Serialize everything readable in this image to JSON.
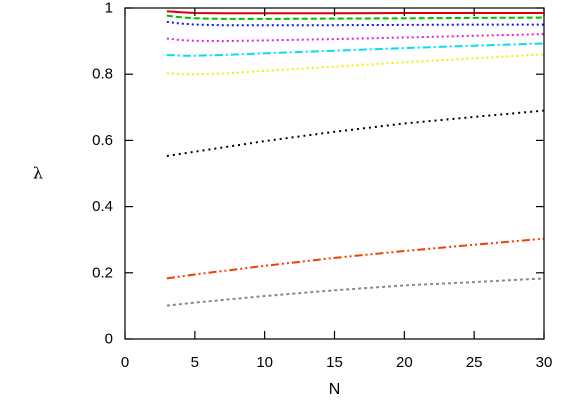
{
  "chart_data": {
    "type": "line",
    "title": "",
    "xlabel": "N",
    "ylabel": "λ",
    "xlim": [
      0,
      30
    ],
    "ylim": [
      0,
      1
    ],
    "x_ticks": [
      0,
      5,
      10,
      15,
      20,
      25,
      30
    ],
    "y_ticks": [
      0,
      0.2,
      0.4,
      0.6,
      0.8,
      1
    ],
    "x_tick_labels": [
      "0",
      "5",
      "10",
      "15",
      "20",
      "25",
      "30"
    ],
    "y_tick_labels": [
      "0",
      "0.2",
      "0.4",
      "0.6",
      "0.8",
      "1"
    ],
    "grid": false,
    "legend": "none",
    "series": [
      {
        "color": "#e00000",
        "dash": "solid",
        "x": [
          3,
          4,
          5,
          7,
          10,
          15,
          20,
          25,
          30
        ],
        "y": [
          0.99,
          0.987,
          0.985,
          0.984,
          0.984,
          0.984,
          0.985,
          0.985,
          0.985
        ]
      },
      {
        "color": "#00c000",
        "dash": "6,3",
        "x": [
          3,
          4,
          5,
          7,
          10,
          15,
          20,
          25,
          30
        ],
        "y": [
          0.977,
          0.972,
          0.969,
          0.967,
          0.967,
          0.968,
          0.969,
          0.97,
          0.971
        ]
      },
      {
        "color": "#1010ff",
        "dash": "2,3",
        "x": [
          3,
          4,
          5,
          7,
          10,
          15,
          20,
          25,
          30
        ],
        "y": [
          0.958,
          0.953,
          0.95,
          0.948,
          0.948,
          0.948,
          0.949,
          0.95,
          0.95
        ]
      },
      {
        "color": "#e020e0",
        "dash": "2,3",
        "x": [
          3,
          4,
          5,
          7,
          10,
          15,
          20,
          25,
          30
        ],
        "y": [
          0.908,
          0.903,
          0.901,
          0.9,
          0.902,
          0.906,
          0.911,
          0.916,
          0.921
        ]
      },
      {
        "color": "#00e0f0",
        "dash": "8,3,2,3",
        "x": [
          3,
          4,
          5,
          7,
          10,
          15,
          20,
          25,
          30
        ],
        "y": [
          0.858,
          0.856,
          0.856,
          0.858,
          0.863,
          0.871,
          0.879,
          0.886,
          0.893
        ]
      },
      {
        "color": "#f0f000",
        "dash": "2,3",
        "x": [
          3,
          4,
          5,
          7,
          10,
          15,
          20,
          25,
          30
        ],
        "y": [
          0.803,
          0.8,
          0.8,
          0.802,
          0.81,
          0.823,
          0.836,
          0.848,
          0.86
        ]
      },
      {
        "color": "#000000",
        "dash": "2,4",
        "x": [
          3,
          5,
          10,
          15,
          20,
          25,
          30
        ],
        "y": [
          0.553,
          0.566,
          0.598,
          0.626,
          0.651,
          0.671,
          0.69
        ]
      },
      {
        "color": "#f04000",
        "dash": "8,3,2,3,2,3",
        "x": [
          3,
          5,
          10,
          15,
          20,
          25,
          30
        ],
        "y": [
          0.183,
          0.195,
          0.221,
          0.245,
          0.266,
          0.285,
          0.303
        ]
      },
      {
        "color": "#888888",
        "dash": "3,3",
        "x": [
          3,
          5,
          10,
          15,
          20,
          25,
          30
        ],
        "y": [
          0.101,
          0.11,
          0.13,
          0.147,
          0.162,
          0.172,
          0.183
        ]
      }
    ]
  }
}
